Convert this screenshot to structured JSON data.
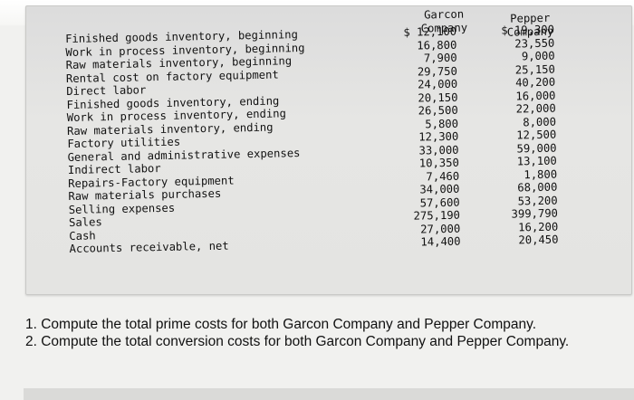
{
  "header": {
    "garcon": [
      "Garcon",
      "Company"
    ],
    "pepper": [
      "Pepper",
      "Company"
    ]
  },
  "rows": [
    {
      "label": "Finished goods inventory, beginning",
      "garcon": "$ 12,100",
      "pepper": "$ 19,300"
    },
    {
      "label": "Work in process inventory, beginning",
      "garcon": "16,800",
      "pepper": "23,550"
    },
    {
      "label": "Raw materials inventory, beginning",
      "garcon": "7,900",
      "pepper": "9,000"
    },
    {
      "label": "Rental cost on factory equipment",
      "garcon": "29,750",
      "pepper": "25,150"
    },
    {
      "label": "Direct labor",
      "garcon": "24,000",
      "pepper": "40,200"
    },
    {
      "label": "Finished goods inventory, ending",
      "garcon": "20,150",
      "pepper": "16,000"
    },
    {
      "label": "Work in process inventory, ending",
      "garcon": "26,500",
      "pepper": "22,000"
    },
    {
      "label": "Raw materials inventory, ending",
      "garcon": "5,800",
      "pepper": "8,000"
    },
    {
      "label": "Factory utilities",
      "garcon": "12,300",
      "pepper": "12,500"
    },
    {
      "label": "General and administrative expenses",
      "garcon": "33,000",
      "pepper": "59,000"
    },
    {
      "label": "Indirect labor",
      "garcon": "10,350",
      "pepper": "13,100"
    },
    {
      "label": "Repairs-Factory equipment",
      "garcon": "7,460",
      "pepper": "1,800"
    },
    {
      "label": "Raw materials purchases",
      "garcon": "34,000",
      "pepper": "68,000"
    },
    {
      "label": "Selling expenses",
      "garcon": "57,600",
      "pepper": "53,200"
    },
    {
      "label": "Sales",
      "garcon": "275,190",
      "pepper": "399,790"
    },
    {
      "label": "Cash",
      "garcon": "27,000",
      "pepper": "16,200"
    },
    {
      "label": "Accounts receivable, net",
      "garcon": "14,400",
      "pepper": "20,450"
    }
  ],
  "questions": [
    "1. Compute the total prime costs for both Garcon Company and Pepper Company.",
    "2. Compute the total conversion costs for both Garcon Company and Pepper Company."
  ]
}
